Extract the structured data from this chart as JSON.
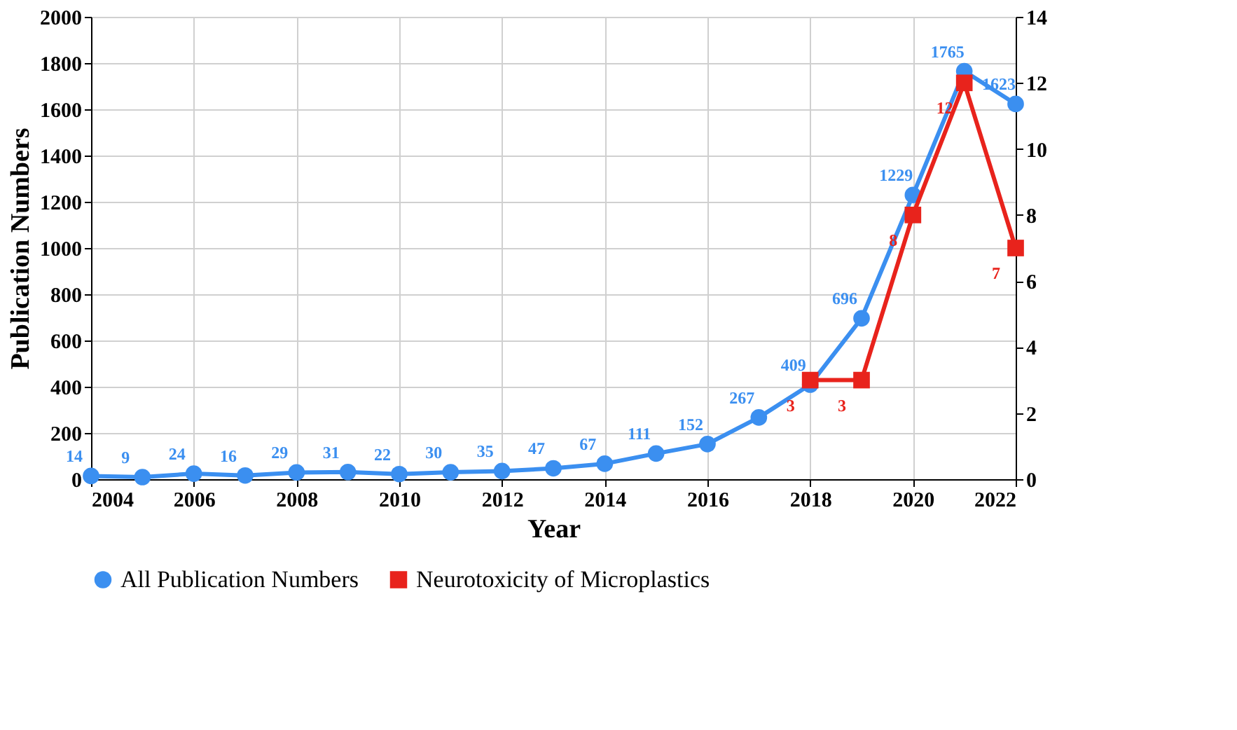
{
  "chart_data": {
    "type": "line",
    "xlabel": "Year",
    "ylabel": "Publication Numbers",
    "x": [
      2004,
      2005,
      2006,
      2007,
      2008,
      2009,
      2010,
      2011,
      2012,
      2013,
      2014,
      2015,
      2016,
      2017,
      2018,
      2019,
      2020,
      2021,
      2022
    ],
    "series": [
      {
        "name": "All Publication Numbers",
        "color": "#3b8ff0",
        "marker": "circle",
        "values": [
          14,
          9,
          24,
          16,
          29,
          31,
          22,
          30,
          35,
          47,
          67,
          111,
          152,
          267,
          409,
          696,
          1229,
          1765,
          1623
        ]
      },
      {
        "name": "Neurotoxicity of Microplastics",
        "color": "#e8231c",
        "marker": "square",
        "axis": "y2",
        "x": [
          2018,
          2019,
          2020,
          2021,
          2022
        ],
        "values": [
          3,
          3,
          8,
          12,
          7
        ]
      }
    ],
    "xlim": [
      2004,
      2022
    ],
    "xticks": [
      2004,
      2006,
      2008,
      2010,
      2012,
      2014,
      2016,
      2018,
      2020,
      2022
    ],
    "ylim": [
      0,
      2000
    ],
    "yticks": [
      0,
      200,
      400,
      600,
      800,
      1000,
      1200,
      1400,
      1600,
      1800,
      2000
    ],
    "y2lim": [
      0,
      14
    ],
    "y2ticks": [
      0,
      2,
      4,
      6,
      8,
      10,
      12,
      14
    ],
    "data_labels": true,
    "grid": true,
    "legend": "bottom",
    "line_style": "solid"
  }
}
